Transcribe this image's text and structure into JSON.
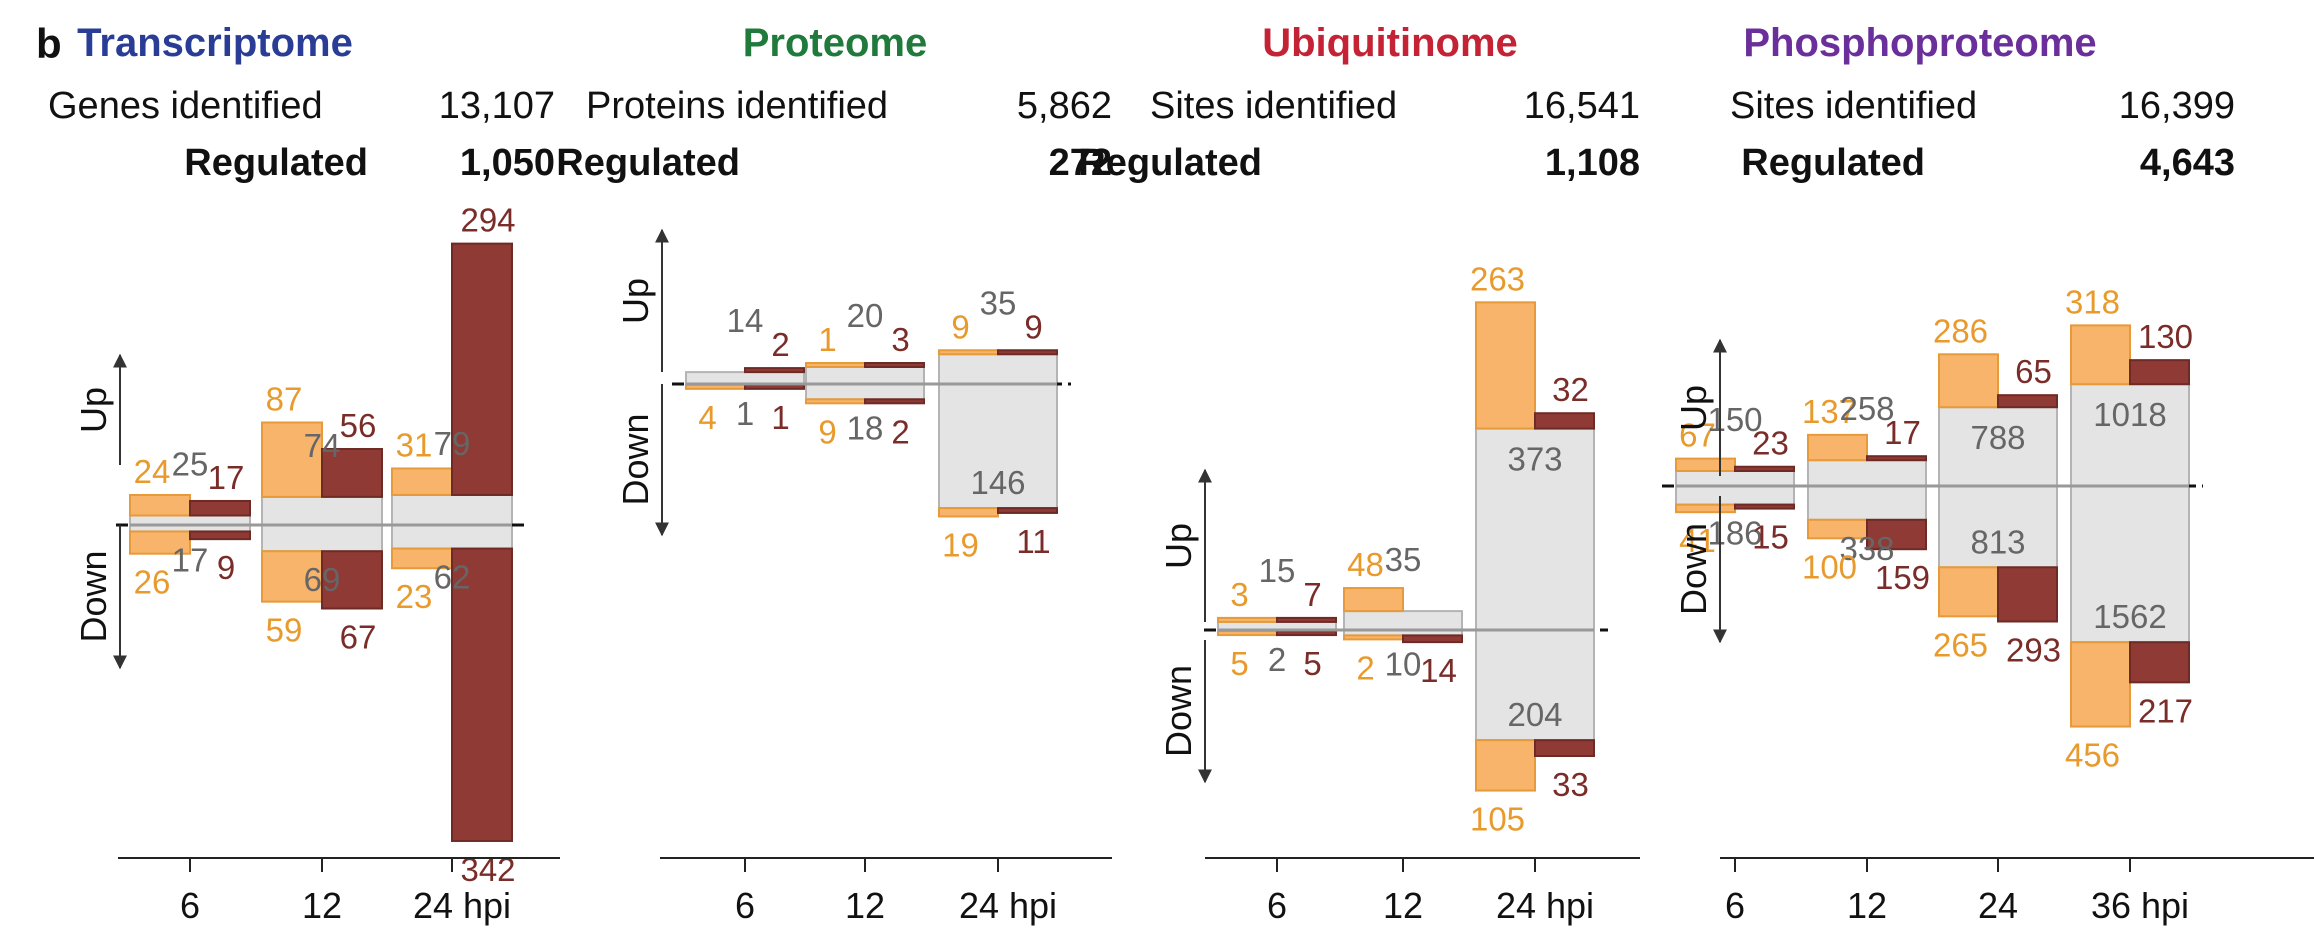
{
  "panel_label": "b",
  "chart_data": [
    {
      "type": "bar",
      "title": "Transcriptome",
      "title_color": "#2a3d96",
      "stats": [
        {
          "label": "Genes identified",
          "value": "13,107",
          "bold": false
        },
        {
          "label": "Regulated",
          "value": "1,050",
          "bold": true
        }
      ],
      "up_label": "Up",
      "down_label": "Down",
      "categories": [
        "6",
        "12",
        "24 hpi"
      ],
      "series": [
        {
          "name": "",
          "color": "#f7b46a",
          "up": [
            24,
            87,
            31
          ],
          "down": [
            26,
            59,
            23
          ]
        },
        {
          "name": "",
          "color": "#8f3a34",
          "up": [
            17,
            56,
            294
          ],
          "down": [
            9,
            67,
            342
          ]
        },
        {
          "name": "",
          "color": "#555555",
          "up": [
            25,
            74,
            79
          ],
          "down": [
            17,
            69,
            62
          ]
        }
      ]
    },
    {
      "type": "bar",
      "title": "Proteome",
      "title_color": "#1f7a3b",
      "stats": [
        {
          "label": "Proteins identified",
          "value": "5,862",
          "bold": false
        },
        {
          "label": "Regulated",
          "value": "272",
          "bold": true
        }
      ],
      "up_label": "Up",
      "down_label": "Down",
      "categories": [
        "6",
        "12",
        "24 hpi"
      ],
      "series": [
        {
          "name": "",
          "color": "#f7b46a",
          "up": [
            0,
            1,
            9
          ],
          "down": [
            4,
            9,
            19
          ]
        },
        {
          "name": "",
          "color": "#8f3a34",
          "up": [
            2,
            3,
            9
          ],
          "down": [
            1,
            2,
            11
          ]
        },
        {
          "name": "",
          "color": "#555555",
          "up": [
            14,
            20,
            35
          ],
          "down": [
            1,
            18,
            146
          ]
        }
      ]
    },
    {
      "type": "bar",
      "title": "Ubiquitinome",
      "title_color": "#c42335",
      "stats": [
        {
          "label": "Sites identified",
          "value": "16,541",
          "bold": false
        },
        {
          "label": "Regulated",
          "value": "1,108",
          "bold": true
        }
      ],
      "up_label": "Up",
      "down_label": "Down",
      "categories": [
        "6",
        "12",
        "24 hpi"
      ],
      "series": [
        {
          "name": "",
          "color": "#f7b46a",
          "up": [
            3,
            48,
            263
          ],
          "down": [
            5,
            2,
            105
          ]
        },
        {
          "name": "",
          "color": "#8f3a34",
          "up": [
            7,
            0,
            32
          ],
          "down": [
            5,
            14,
            33
          ]
        },
        {
          "name": "",
          "color": "#555555",
          "up": [
            15,
            35,
            373
          ],
          "down": [
            2,
            10,
            204
          ]
        }
      ]
    },
    {
      "type": "bar",
      "title": "Phosphoproteome",
      "title_color": "#6a2f9a",
      "stats": [
        {
          "label": "Sites identified",
          "value": "16,399",
          "bold": false
        },
        {
          "label": "Regulated",
          "value": "4,643",
          "bold": true
        }
      ],
      "up_label": "Up",
      "down_label": "Down",
      "categories": [
        "6",
        "12",
        "24",
        "36 hpi"
      ],
      "series": [
        {
          "name": "",
          "color": "#f7b46a",
          "up": [
            67,
            137,
            286,
            318
          ],
          "down": [
            41,
            100,
            265,
            456
          ]
        },
        {
          "name": "",
          "color": "#8f3a34",
          "up": [
            23,
            17,
            65,
            130
          ],
          "down": [
            15,
            159,
            293,
            217
          ]
        },
        {
          "name": "",
          "color": "#555555",
          "up": [
            150,
            258,
            788,
            1018
          ],
          "down": [
            186,
            338,
            813,
            1562
          ]
        }
      ]
    }
  ]
}
